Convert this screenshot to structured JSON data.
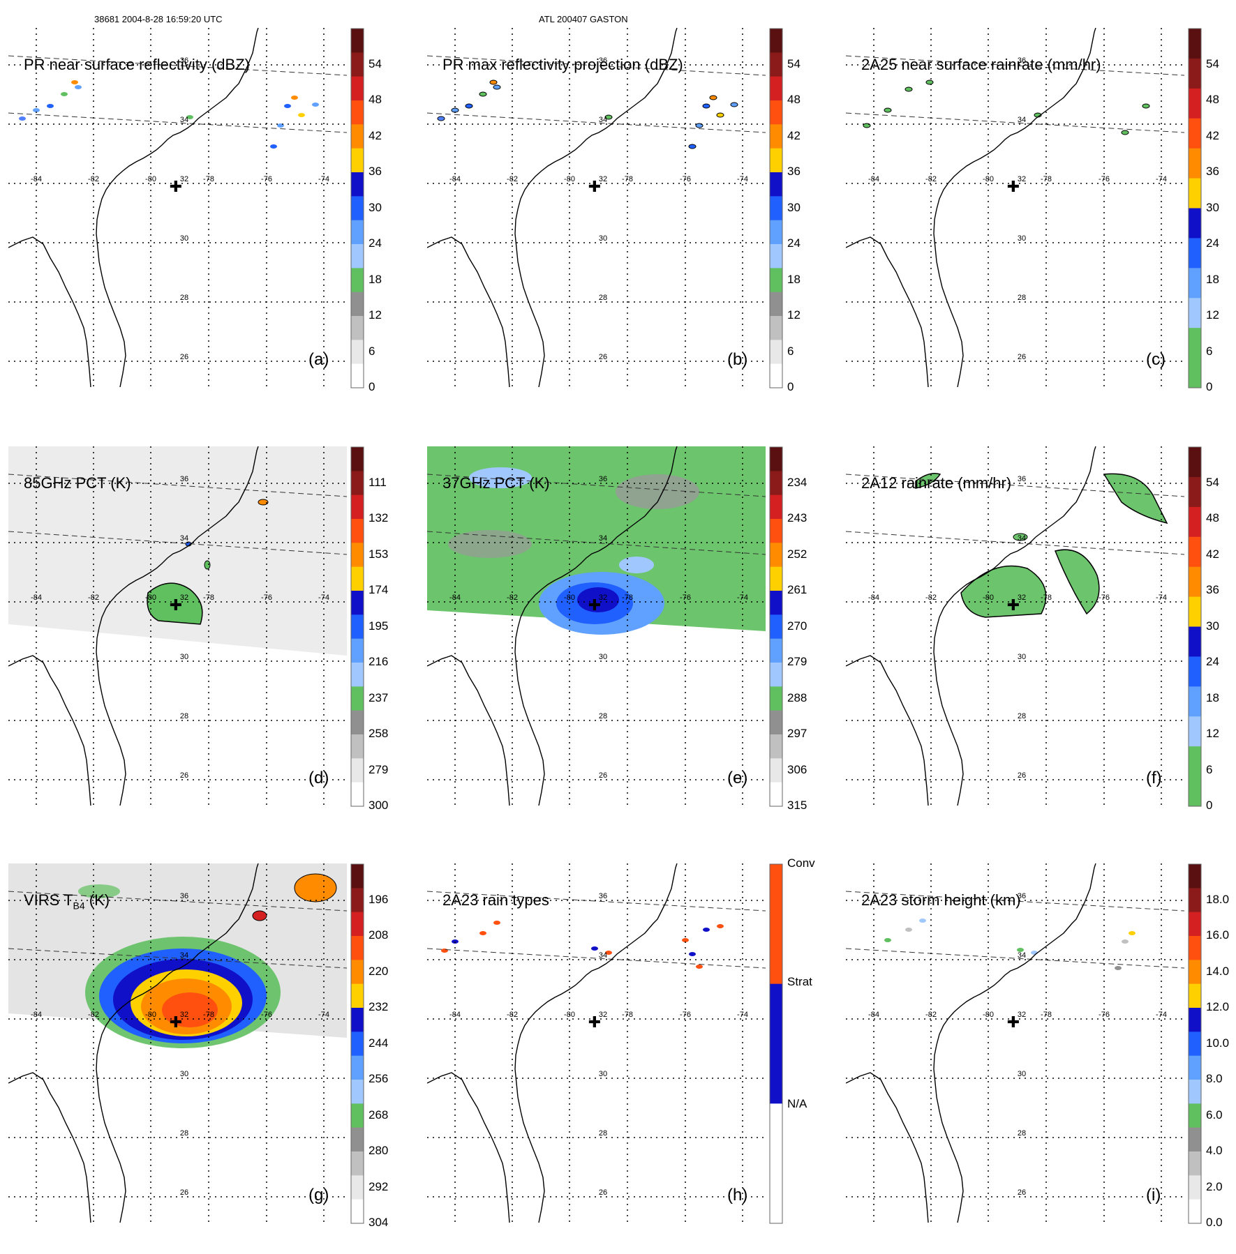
{
  "header": {
    "left": "38681 2004-8-28 16:59:20 UTC",
    "center": "ATL 200407 GASTON"
  },
  "axes": {
    "lon_labels": [
      "-84",
      "-82",
      "-80",
      "-78",
      "-76",
      "-74"
    ],
    "lat_labels": [
      "36",
      "34",
      "32",
      "30",
      "28",
      "26"
    ]
  },
  "panels": [
    {
      "title": "PR near surface reflectivity (dBZ)",
      "label": "(a)",
      "colorbar": {
        "ticks": [
          "54",
          "48",
          "42",
          "36",
          "30",
          "24",
          "18",
          "12",
          "6",
          "0"
        ],
        "colors": [
          "#5a1010",
          "#8b1a1a",
          "#d42020",
          "#ff5010",
          "#ff8c00",
          "#ffd000",
          "#1010c8",
          "#2060ff",
          "#60a0ff",
          "#a0c8ff",
          "#60c060",
          "#909090",
          "#c0c0c0",
          "#e8e8e8",
          "#ffffff"
        ]
      }
    },
    {
      "title": "PR max reflectivity projection (dBZ)",
      "label": "(b)",
      "colorbar": {
        "ticks": [
          "54",
          "48",
          "42",
          "36",
          "30",
          "24",
          "18",
          "12",
          "6",
          "0"
        ],
        "colors": [
          "#5a1010",
          "#8b1a1a",
          "#d42020",
          "#ff5010",
          "#ff8c00",
          "#ffd000",
          "#1010c8",
          "#2060ff",
          "#60a0ff",
          "#a0c8ff",
          "#60c060",
          "#909090",
          "#c0c0c0",
          "#e8e8e8",
          "#ffffff"
        ]
      }
    },
    {
      "title": "2A25 near surface rainrate (mm/hr)",
      "label": "(c)",
      "colorbar": {
        "ticks": [
          "54",
          "48",
          "42",
          "36",
          "30",
          "24",
          "18",
          "12",
          "6",
          "0"
        ],
        "colors": [
          "#5a1010",
          "#8b1a1a",
          "#d42020",
          "#ff5010",
          "#ff8c00",
          "#ffd000",
          "#1010c8",
          "#2060ff",
          "#60a0ff",
          "#a0c8ff",
          "#60c060",
          "#60c060"
        ]
      }
    },
    {
      "title": "85GHz PCT (K)",
      "label": "(d)",
      "colorbar": {
        "ticks": [
          "111",
          "132",
          "153",
          "174",
          "195",
          "216",
          "237",
          "258",
          "279",
          "300"
        ],
        "colors": [
          "#5a1010",
          "#8b1a1a",
          "#d42020",
          "#ff5010",
          "#ff8c00",
          "#ffd000",
          "#1010c8",
          "#2060ff",
          "#60a0ff",
          "#a0c8ff",
          "#60c060",
          "#909090",
          "#c0c0c0",
          "#e8e8e8",
          "#ffffff"
        ]
      }
    },
    {
      "title": "37GHz PCT (K)",
      "label": "(e)",
      "colorbar": {
        "ticks": [
          "234",
          "243",
          "252",
          "261",
          "270",
          "279",
          "288",
          "297",
          "306",
          "315"
        ],
        "colors": [
          "#5a1010",
          "#8b1a1a",
          "#d42020",
          "#ff5010",
          "#ff8c00",
          "#ffd000",
          "#1010c8",
          "#2060ff",
          "#60a0ff",
          "#a0c8ff",
          "#60c060",
          "#909090",
          "#c0c0c0",
          "#e8e8e8",
          "#ffffff"
        ]
      }
    },
    {
      "title": "2A12 rainrate (mm/hr)",
      "label": "(f)",
      "colorbar": {
        "ticks": [
          "54",
          "48",
          "42",
          "36",
          "30",
          "24",
          "18",
          "12",
          "6",
          "0"
        ],
        "colors": [
          "#5a1010",
          "#8b1a1a",
          "#d42020",
          "#ff5010",
          "#ff8c00",
          "#ffd000",
          "#1010c8",
          "#2060ff",
          "#60a0ff",
          "#a0c8ff",
          "#60c060",
          "#60c060"
        ]
      }
    },
    {
      "title": "VIRS T",
      "title_sub": "B4",
      "title_tail": " (K)",
      "label": "(g)",
      "colorbar": {
        "ticks": [
          "196",
          "208",
          "220",
          "232",
          "244",
          "256",
          "268",
          "280",
          "292",
          "304"
        ],
        "colors": [
          "#5a1010",
          "#8b1a1a",
          "#d42020",
          "#ff5010",
          "#ff8c00",
          "#ffd000",
          "#1010c8",
          "#2060ff",
          "#60a0ff",
          "#a0c8ff",
          "#60c060",
          "#909090",
          "#c0c0c0",
          "#e8e8e8",
          "#ffffff"
        ]
      }
    },
    {
      "title": "2A23 rain types",
      "label": "(h)",
      "colorbar": {
        "ticks": [
          "Conv",
          "Strat",
          "N/A"
        ],
        "colors": [
          "#ff5010",
          "#1010c8",
          "#ffffff"
        ]
      }
    },
    {
      "title": "2A23 storm height (km)",
      "label": "(i)",
      "colorbar": {
        "ticks": [
          "18.0",
          "16.0",
          "14.0",
          "12.0",
          "10.0",
          "8.0",
          "6.0",
          "4.0",
          "2.0",
          "0.0"
        ],
        "colors": [
          "#5a1010",
          "#8b1a1a",
          "#d42020",
          "#ff5010",
          "#ff8c00",
          "#ffd000",
          "#1010c8",
          "#2060ff",
          "#60a0ff",
          "#a0c8ff",
          "#60c060",
          "#909090",
          "#c0c0c0",
          "#e8e8e8",
          "#ffffff"
        ]
      }
    }
  ]
}
